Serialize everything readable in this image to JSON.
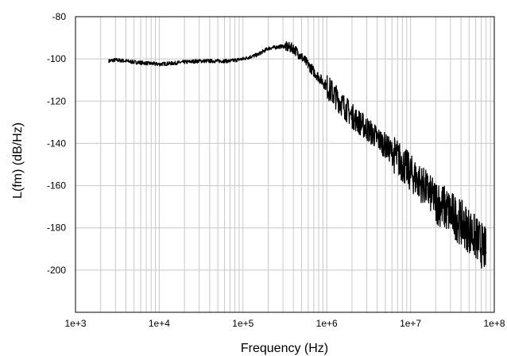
{
  "chart_data": {
    "type": "line",
    "title": "",
    "xlabel": "Frequency (Hz)",
    "ylabel": "L(fm) (dB/Hz)",
    "x_scale": "log",
    "y_scale": "linear",
    "xlim": [
      1000,
      100000000
    ],
    "ylim": [
      -220,
      -80
    ],
    "grid": true,
    "legend": "none",
    "x_ticks": [
      1000,
      10000,
      100000,
      1000000,
      10000000,
      100000000
    ],
    "x_tick_labels": [
      "1e+3",
      "1e+4",
      "1e+5",
      "1e+6",
      "1e+7",
      "1e+8"
    ],
    "y_ticks": [
      -80,
      -100,
      -120,
      -140,
      -160,
      -180,
      -200
    ],
    "y_tick_labels": [
      "-80",
      "-100",
      "-120",
      "-140",
      "-160",
      "-180",
      "-200"
    ],
    "line_color": "#000000",
    "grid_color": "#c8c8c8",
    "series": [
      {
        "x": [
          2500,
          3000,
          4000,
          5000,
          7000,
          10000,
          15000,
          20000,
          30000,
          50000,
          70000,
          100000,
          150000,
          200000,
          300000,
          400000,
          500000,
          700000,
          1000000,
          1500000,
          2000000,
          3000000,
          5000000,
          7000000,
          10000000,
          15000000,
          20000000,
          30000000,
          50000000,
          80000000
        ],
        "y": [
          -101,
          -100.5,
          -101,
          -101.5,
          -102,
          -102.5,
          -102,
          -101.5,
          -101,
          -101,
          -101,
          -100,
          -98,
          -95,
          -94,
          -95,
          -99,
          -106,
          -113,
          -121,
          -127,
          -133,
          -141,
          -147,
          -154,
          -161,
          -167,
          -173,
          -181,
          -191
        ]
      }
    ]
  }
}
